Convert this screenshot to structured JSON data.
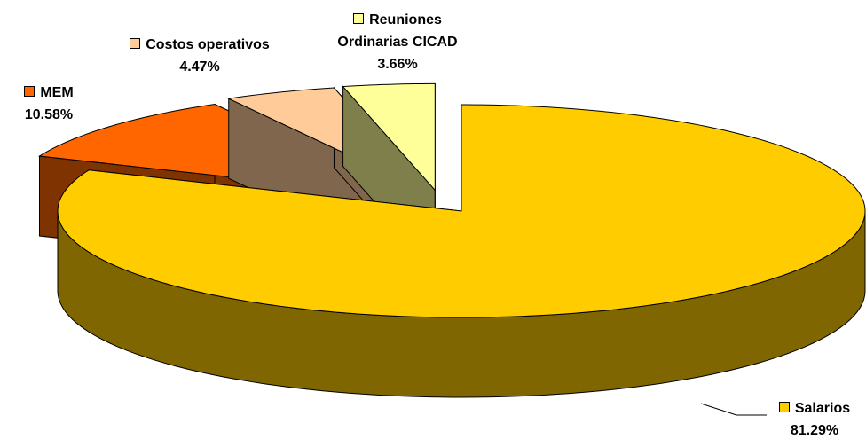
{
  "chart_data": {
    "type": "pie",
    "categories": [
      "Salarios",
      "MEM",
      "Costos operativos",
      "Reuniones Ordinarias CICAD"
    ],
    "values": [
      81.29,
      10.58,
      4.47,
      3.66
    ],
    "value_labels": [
      "81.29%",
      "10.58%",
      "4.47%",
      "3.66%"
    ],
    "colors": [
      "#FFCC00",
      "#FF6600",
      "#FFCC99",
      "#FFFF99"
    ]
  }
}
